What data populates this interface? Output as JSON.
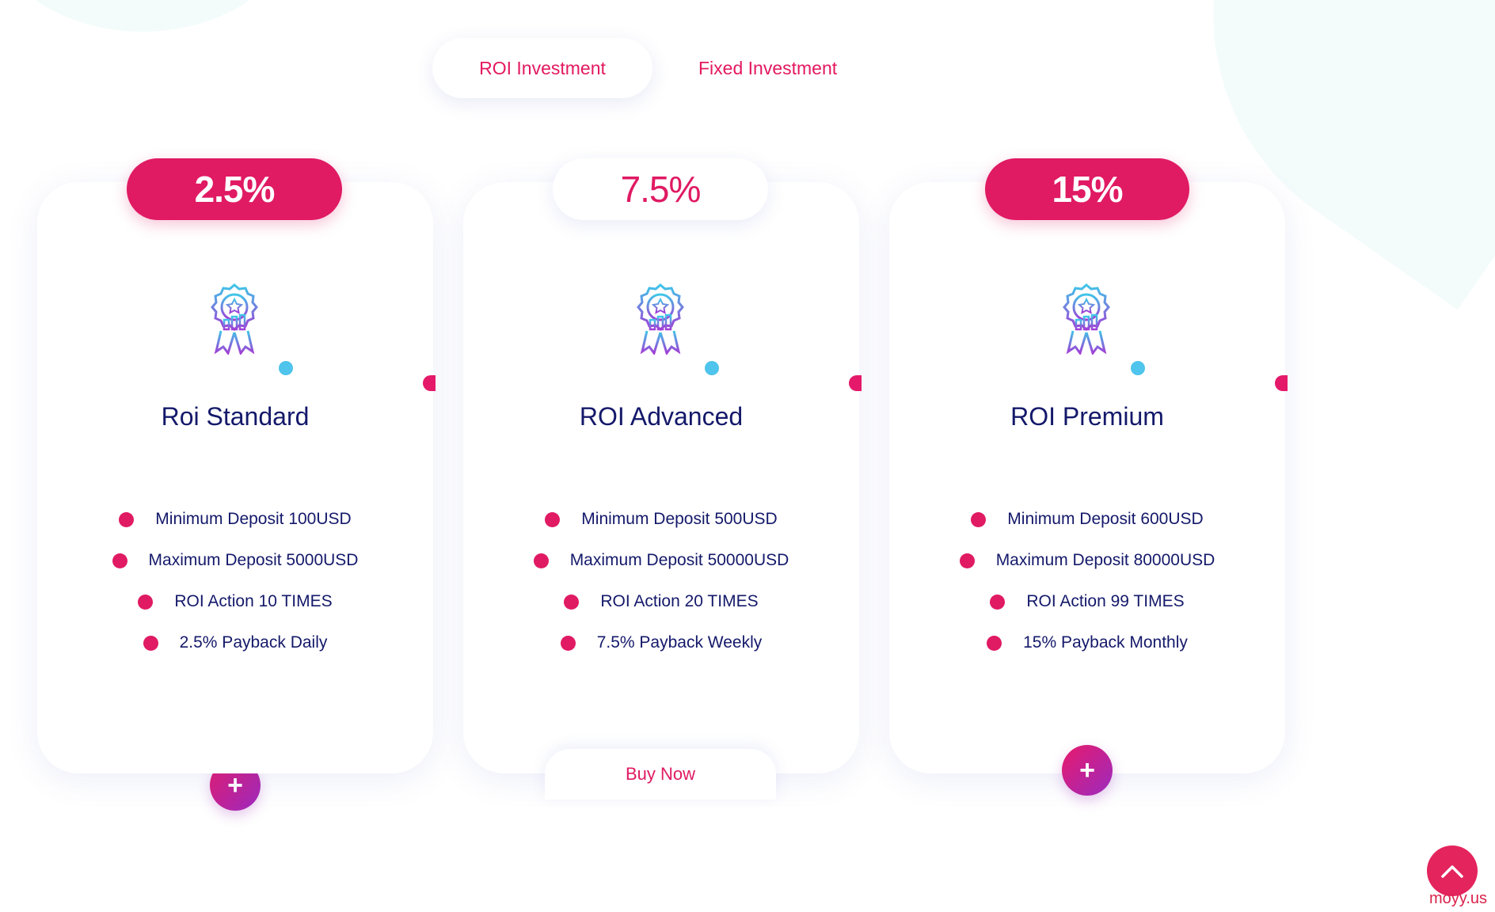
{
  "tabs": [
    {
      "label": "ROI Investment",
      "active": true
    },
    {
      "label": "Fixed Investment",
      "active": false
    }
  ],
  "plans": [
    {
      "rate": "2.5%",
      "name": "Roi Standard",
      "features": [
        "Minimum Deposit 100USD",
        "Maximum Deposit 5000USD",
        "ROI Action 10 TIMES",
        "2.5% Payback Daily"
      ],
      "action": "+"
    },
    {
      "rate": "7.5%",
      "name": "ROI Advanced",
      "features": [
        "Minimum Deposit 500USD",
        "Maximum Deposit 50000USD",
        "ROI Action 20 TIMES",
        "7.5% Payback Weekly"
      ],
      "action": "Buy Now"
    },
    {
      "rate": "15%",
      "name": "ROI Premium",
      "features": [
        "Minimum Deposit 600USD",
        "Maximum Deposit 80000USD",
        "ROI Action 99 TIMES",
        "15% Payback Monthly"
      ],
      "action": "+"
    }
  ],
  "watermark": "moyy.us",
  "icons": {
    "medal": "medal-icon",
    "scroll_top": "chevron-up-icon"
  },
  "colors": {
    "accent": "#e01a63",
    "heading": "#14196a",
    "blue_dot": "#4fc4ec"
  }
}
